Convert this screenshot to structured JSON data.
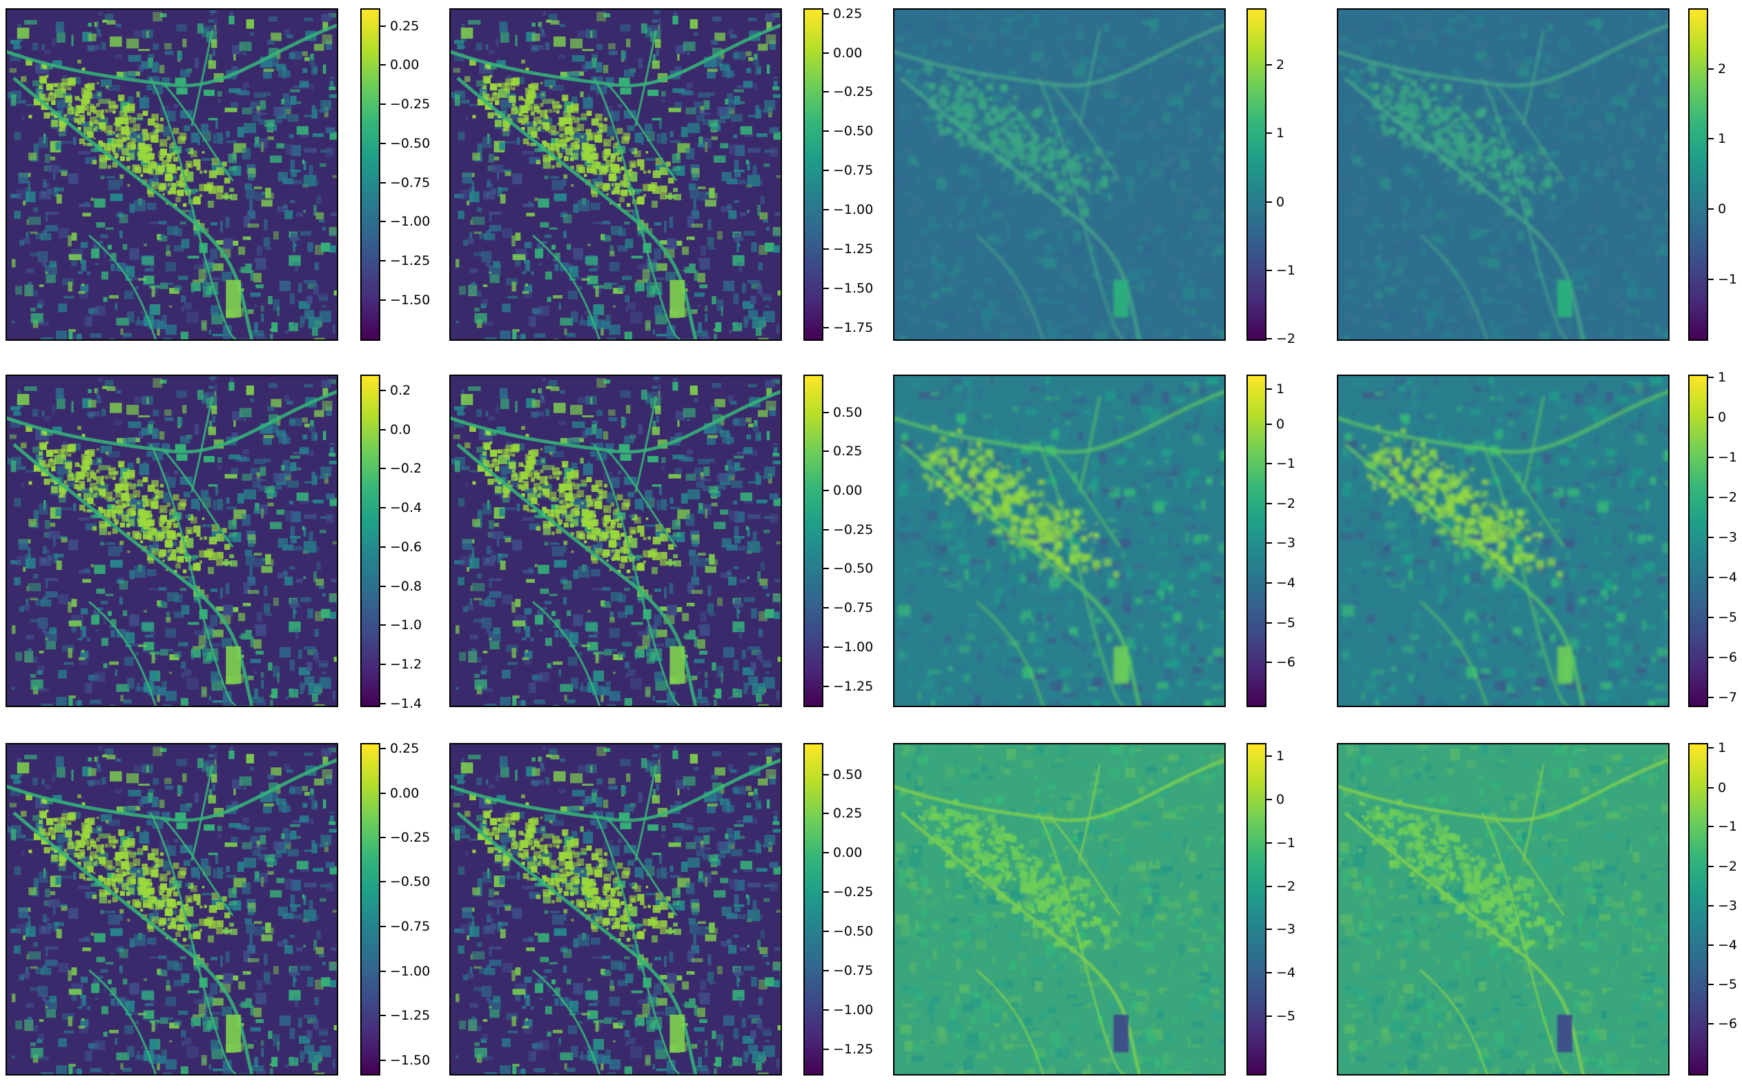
{
  "figure": {
    "rows": 3,
    "cols": 4,
    "colormap": "viridis",
    "colormap_stops": [
      "#440154",
      "#482878",
      "#3e4989",
      "#31688e",
      "#26828e",
      "#1f9e89",
      "#35b779",
      "#6ece58",
      "#b5de2b",
      "#fde725"
    ],
    "panels": [
      {
        "id": "r1c1",
        "style": "sharp",
        "scene": "urban-raster",
        "ticks": [
          {
            "label": "0.25",
            "frac": 0.947
          },
          {
            "label": "0.00",
            "frac": 0.83
          },
          {
            "label": "−0.25",
            "frac": 0.712
          },
          {
            "label": "−0.50",
            "frac": 0.594
          },
          {
            "label": "−0.75",
            "frac": 0.476
          },
          {
            "label": "−1.00",
            "frac": 0.358
          },
          {
            "label": "−1.25",
            "frac": 0.24
          },
          {
            "label": "−1.50",
            "frac": 0.122
          }
        ]
      },
      {
        "id": "r1c2",
        "style": "sharp",
        "scene": "urban-raster",
        "ticks": [
          {
            "label": "0.25",
            "frac": 0.983
          },
          {
            "label": "0.00",
            "frac": 0.866
          },
          {
            "label": "−0.25",
            "frac": 0.748
          },
          {
            "label": "−0.50",
            "frac": 0.63
          },
          {
            "label": "−0.75",
            "frac": 0.512
          },
          {
            "label": "−1.00",
            "frac": 0.394
          },
          {
            "label": "−1.25",
            "frac": 0.276
          },
          {
            "label": "−1.50",
            "frac": 0.158
          },
          {
            "label": "−1.75",
            "frac": 0.04
          }
        ]
      },
      {
        "id": "r1c3",
        "style": "diffuse",
        "scene": "urban-raster",
        "ticks": [
          {
            "label": "2",
            "frac": 0.83
          },
          {
            "label": "1",
            "frac": 0.624
          },
          {
            "label": "0",
            "frac": 0.418
          },
          {
            "label": "−1",
            "frac": 0.212
          },
          {
            "label": "−2",
            "frac": 0.006
          }
        ]
      },
      {
        "id": "r1c4",
        "style": "diffuse",
        "scene": "urban-raster",
        "ticks": [
          {
            "label": "2",
            "frac": 0.818
          },
          {
            "label": "1",
            "frac": 0.607
          },
          {
            "label": "0",
            "frac": 0.396
          },
          {
            "label": "−1",
            "frac": 0.185
          }
        ]
      },
      {
        "id": "r2c1",
        "style": "sharp",
        "scene": "urban-raster",
        "ticks": [
          {
            "label": "0.2",
            "frac": 0.952
          },
          {
            "label": "0.0",
            "frac": 0.834
          },
          {
            "label": "−0.2",
            "frac": 0.717
          },
          {
            "label": "−0.4",
            "frac": 0.599
          },
          {
            "label": "−0.6",
            "frac": 0.482
          },
          {
            "label": "−0.8",
            "frac": 0.364
          },
          {
            "label": "−1.0",
            "frac": 0.246
          },
          {
            "label": "−1.2",
            "frac": 0.129
          },
          {
            "label": "−1.4",
            "frac": 0.011
          }
        ]
      },
      {
        "id": "r2c2",
        "style": "sharp",
        "scene": "urban-raster",
        "ticks": [
          {
            "label": "0.50",
            "frac": 0.886
          },
          {
            "label": "0.25",
            "frac": 0.769
          },
          {
            "label": "0.00",
            "frac": 0.651
          },
          {
            "label": "−0.25",
            "frac": 0.534
          },
          {
            "label": "−0.50",
            "frac": 0.416
          },
          {
            "label": "−0.75",
            "frac": 0.298
          },
          {
            "label": "−1.00",
            "frac": 0.18
          },
          {
            "label": "−1.25",
            "frac": 0.063
          }
        ]
      },
      {
        "id": "r2c3",
        "style": "bright-diffuse",
        "scene": "urban-raster",
        "ticks": [
          {
            "label": "1",
            "frac": 0.956
          },
          {
            "label": "0",
            "frac": 0.851
          },
          {
            "label": "−1",
            "frac": 0.732
          },
          {
            "label": "−2",
            "frac": 0.612
          },
          {
            "label": "−3",
            "frac": 0.493
          },
          {
            "label": "−4",
            "frac": 0.373
          },
          {
            "label": "−5",
            "frac": 0.254
          },
          {
            "label": "−6",
            "frac": 0.134
          }
        ]
      },
      {
        "id": "r2c4",
        "style": "bright-diffuse",
        "scene": "urban-raster",
        "ticks": [
          {
            "label": "1",
            "frac": 0.991
          },
          {
            "label": "0",
            "frac": 0.871
          },
          {
            "label": "−1",
            "frac": 0.751
          },
          {
            "label": "−2",
            "frac": 0.631
          },
          {
            "label": "−3",
            "frac": 0.511
          },
          {
            "label": "−4",
            "frac": 0.39
          },
          {
            "label": "−5",
            "frac": 0.27
          },
          {
            "label": "−6",
            "frac": 0.15
          },
          {
            "label": "−7",
            "frac": 0.03
          }
        ]
      },
      {
        "id": "r3c1",
        "style": "sharp",
        "scene": "urban-raster",
        "ticks": [
          {
            "label": "0.25",
            "frac": 0.983
          },
          {
            "label": "0.00",
            "frac": 0.849
          },
          {
            "label": "−0.25",
            "frac": 0.715
          },
          {
            "label": "−0.50",
            "frac": 0.582
          },
          {
            "label": "−0.75",
            "frac": 0.448
          },
          {
            "label": "−1.00",
            "frac": 0.314
          },
          {
            "label": "−1.25",
            "frac": 0.18
          },
          {
            "label": "−1.50",
            "frac": 0.046
          }
        ]
      },
      {
        "id": "r3c2",
        "style": "sharp",
        "scene": "urban-raster",
        "ticks": [
          {
            "label": "0.50",
            "frac": 0.905
          },
          {
            "label": "0.25",
            "frac": 0.788
          },
          {
            "label": "0.00",
            "frac": 0.67
          },
          {
            "label": "−0.25",
            "frac": 0.552
          },
          {
            "label": "−0.50",
            "frac": 0.434
          },
          {
            "label": "−0.75",
            "frac": 0.315
          },
          {
            "label": "−1.00",
            "frac": 0.197
          },
          {
            "label": "−1.25",
            "frac": 0.079
          }
        ]
      },
      {
        "id": "r3c3",
        "style": "bright-smooth",
        "scene": "urban-raster",
        "ticks": [
          {
            "label": "1",
            "frac": 0.96
          },
          {
            "label": "0",
            "frac": 0.83
          },
          {
            "label": "−1",
            "frac": 0.699
          },
          {
            "label": "−2",
            "frac": 0.569
          },
          {
            "label": "−3",
            "frac": 0.439
          },
          {
            "label": "−4",
            "frac": 0.309
          },
          {
            "label": "−5",
            "frac": 0.178
          }
        ]
      },
      {
        "id": "r3c4",
        "style": "bright-smooth",
        "scene": "urban-raster",
        "ticks": [
          {
            "label": "1",
            "frac": 0.985
          },
          {
            "label": "0",
            "frac": 0.866
          },
          {
            "label": "−1",
            "frac": 0.748
          },
          {
            "label": "−2",
            "frac": 0.629
          },
          {
            "label": "−3",
            "frac": 0.511
          },
          {
            "label": "−4",
            "frac": 0.392
          },
          {
            "label": "−5",
            "frac": 0.274
          },
          {
            "label": "−6",
            "frac": 0.155
          }
        ]
      }
    ]
  }
}
